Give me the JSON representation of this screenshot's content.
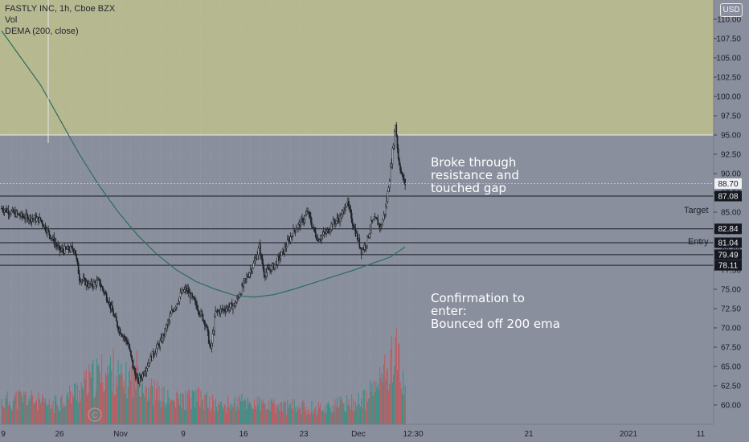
{
  "legend": {
    "symbol": "FASTLY INC, 1h, Cboe BZX",
    "vol": "Vol",
    "dema": "DEMA (200, close)"
  },
  "currency": "USD",
  "annotations": {
    "breakout": "Broke through\nresistance and\ntouched gap",
    "confirmation": "Confirmation to\nenter:\nBounced off 200 ema",
    "target": "Target",
    "entry": "Entry"
  },
  "colors": {
    "background": "#8a8f9e",
    "gap_zone": "#b6b98f",
    "candle_up": "#1f2328",
    "candle_down": "#1f2328",
    "vol_up": "#2f8f80",
    "vol_down": "#c75155",
    "dema": "#2c6e5c",
    "level_line": "#1b1e26"
  },
  "chart_data": {
    "type": "candlestick",
    "title": "FASTLY INC, 1h, Cboe BZX",
    "x_ticks": [
      "9",
      "26",
      "Nov",
      "9",
      "16",
      "23",
      "Dec",
      "12:30",
      "21",
      "2021",
      "11"
    ],
    "y_ticks": [
      60.0,
      62.5,
      65.0,
      67.5,
      70.0,
      72.5,
      75.0,
      77.5,
      80.0,
      82.5,
      85.0,
      87.5,
      90.0,
      92.5,
      95.0,
      97.5,
      100.0,
      102.5,
      105.0,
      107.5,
      110.0
    ],
    "ylim": [
      57.5,
      112.5
    ],
    "gap_zone": [
      95.0,
      112.5
    ],
    "last_price": 88.7,
    "levels": [
      {
        "value": 87.08,
        "label": "Target"
      },
      {
        "value": 82.84,
        "label": "Entry"
      },
      {
        "value": 81.04,
        "label": ""
      },
      {
        "value": 79.49,
        "label": ""
      },
      {
        "value": 78.11,
        "label": ""
      }
    ],
    "price_path": [
      [
        0,
        85.5
      ],
      [
        4,
        84.5
      ],
      [
        8,
        84.0
      ],
      [
        10,
        82.0
      ],
      [
        12,
        80.0
      ],
      [
        15,
        80.3
      ],
      [
        16,
        76.5
      ],
      [
        18,
        75.5
      ],
      [
        20,
        76.0
      ],
      [
        22,
        73.5
      ],
      [
        24,
        70.0
      ],
      [
        26,
        68.0
      ],
      [
        27,
        65.0
      ],
      [
        28,
        63.0
      ],
      [
        29,
        64.0
      ],
      [
        31,
        66.5
      ],
      [
        33,
        68.5
      ],
      [
        35,
        72.0
      ],
      [
        37,
        74.5
      ],
      [
        38,
        75.0
      ],
      [
        40,
        73.0
      ],
      [
        42,
        70.5
      ],
      [
        43,
        67.0
      ],
      [
        44,
        72.0
      ],
      [
        46,
        72.5
      ],
      [
        48,
        73.0
      ],
      [
        50,
        76.0
      ],
      [
        52,
        78.5
      ],
      [
        53,
        80.5
      ],
      [
        54,
        77.0
      ],
      [
        56,
        78.0
      ],
      [
        58,
        80.0
      ],
      [
        60,
        82.5
      ],
      [
        62,
        84.0
      ],
      [
        63,
        85.0
      ],
      [
        64,
        83.0
      ],
      [
        65,
        81.5
      ],
      [
        67,
        82.5
      ],
      [
        68,
        83.5
      ],
      [
        70,
        84.5
      ],
      [
        71,
        86.5
      ],
      [
        72,
        84.0
      ],
      [
        73,
        82.0
      ],
      [
        74,
        80.0
      ],
      [
        75,
        81.0
      ],
      [
        76,
        83.5
      ],
      [
        77,
        84.0
      ],
      [
        78,
        83.0
      ],
      [
        79,
        85.5
      ],
      [
        80,
        90.5
      ],
      [
        81,
        96.5
      ],
      [
        81.6,
        92.0
      ],
      [
        82.4,
        89.5
      ],
      [
        83,
        88.7
      ]
    ],
    "dema_path": [
      [
        0,
        108.5
      ],
      [
        4,
        105.0
      ],
      [
        8,
        101.5
      ],
      [
        12,
        97.0
      ],
      [
        16,
        92.5
      ],
      [
        20,
        88.5
      ],
      [
        24,
        85.0
      ],
      [
        28,
        82.0
      ],
      [
        32,
        79.5
      ],
      [
        36,
        77.5
      ],
      [
        40,
        76.0
      ],
      [
        44,
        75.0
      ],
      [
        48,
        74.2
      ],
      [
        52,
        74.0
      ],
      [
        56,
        74.3
      ],
      [
        60,
        75.0
      ],
      [
        64,
        75.8
      ],
      [
        68,
        76.6
      ],
      [
        72,
        77.4
      ],
      [
        76,
        78.3
      ],
      [
        80,
        79.2
      ],
      [
        83,
        80.5
      ]
    ],
    "volume_profile": [
      [
        0,
        0.25
      ],
      [
        5,
        0.3
      ],
      [
        10,
        0.2
      ],
      [
        15,
        0.35
      ],
      [
        20,
        0.55
      ],
      [
        23,
        0.6
      ],
      [
        25,
        0.45
      ],
      [
        28,
        0.6
      ],
      [
        30,
        0.4
      ],
      [
        35,
        0.25
      ],
      [
        40,
        0.3
      ],
      [
        45,
        0.2
      ],
      [
        50,
        0.25
      ],
      [
        55,
        0.2
      ],
      [
        60,
        0.2
      ],
      [
        65,
        0.18
      ],
      [
        70,
        0.22
      ],
      [
        75,
        0.28
      ],
      [
        80,
        0.65
      ],
      [
        81,
        1.0
      ],
      [
        82,
        0.55
      ],
      [
        83,
        0.35
      ]
    ]
  }
}
